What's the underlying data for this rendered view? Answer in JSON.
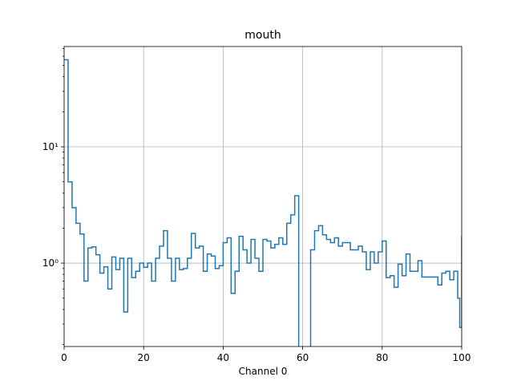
{
  "chart_data": {
    "type": "step",
    "title": "mouth",
    "xlabel": "Channel 0",
    "x": [
      0,
      1,
      2,
      3,
      4,
      5,
      6,
      7,
      8,
      9,
      10,
      11,
      12,
      13,
      14,
      15,
      16,
      17,
      18,
      19,
      20,
      21,
      22,
      23,
      24,
      25,
      26,
      27,
      28,
      29,
      30,
      31,
      32,
      33,
      34,
      35,
      36,
      37,
      38,
      39,
      40,
      41,
      42,
      43,
      44,
      45,
      46,
      47,
      48,
      49,
      50,
      51,
      52,
      53,
      54,
      55,
      56,
      57,
      58,
      59,
      60,
      61,
      62,
      63,
      64,
      65,
      66,
      67,
      68,
      69,
      70,
      71,
      72,
      73,
      74,
      75,
      76,
      77,
      78,
      79,
      80,
      81,
      82,
      83,
      84,
      85,
      86,
      87,
      88,
      89,
      90,
      91,
      92,
      93,
      94,
      95,
      96,
      97,
      98,
      99,
      99.5,
      100
    ],
    "series": [
      {
        "color": "#1f77b4",
        "values": [
          56,
          5.0,
          3.0,
          2.2,
          1.78,
          0.7,
          1.35,
          1.38,
          1.18,
          0.82,
          0.93,
          0.6,
          1.13,
          0.88,
          1.1,
          0.38,
          1.1,
          0.75,
          0.85,
          1.0,
          0.92,
          1.0,
          0.7,
          1.1,
          1.4,
          1.9,
          1.1,
          0.7,
          1.1,
          0.88,
          0.9,
          1.1,
          1.8,
          1.35,
          1.4,
          0.85,
          1.2,
          1.15,
          0.9,
          0.95,
          1.5,
          1.65,
          0.55,
          0.85,
          1.7,
          1.3,
          1.0,
          1.6,
          1.1,
          0.85,
          1.6,
          1.55,
          1.35,
          1.45,
          1.65,
          1.45,
          2.2,
          2.6,
          3.8,
          0,
          0,
          0,
          1.3,
          1.9,
          2.1,
          1.75,
          1.6,
          1.5,
          1.65,
          1.4,
          1.5,
          1.5,
          1.3,
          1.3,
          1.4,
          1.25,
          0.88,
          1.25,
          1.0,
          1.25,
          1.55,
          0.75,
          0.78,
          0.62,
          0.98,
          0.78,
          1.2,
          0.85,
          0.85,
          1.05,
          0.76,
          0.76,
          0.76,
          0.76,
          0.65,
          0.82,
          0.85,
          0.72,
          0.85,
          0.5,
          0.28,
          1.7
        ]
      }
    ],
    "xlim": [
      0,
      100
    ],
    "xticks": [
      0,
      20,
      40,
      60,
      80,
      100
    ],
    "ylim": [
      0.192,
      72.8
    ],
    "yscale": "log",
    "yticks": [
      {
        "value": 1,
        "label": "10⁰"
      },
      {
        "value": 10,
        "label": "10¹"
      }
    ],
    "yminor_ticks": [
      0.2,
      0.3,
      0.4,
      0.5,
      0.6,
      0.7,
      0.8,
      0.9,
      2,
      3,
      4,
      5,
      6,
      7,
      8,
      9,
      20,
      30,
      40,
      50,
      60,
      70
    ],
    "grid": true
  }
}
